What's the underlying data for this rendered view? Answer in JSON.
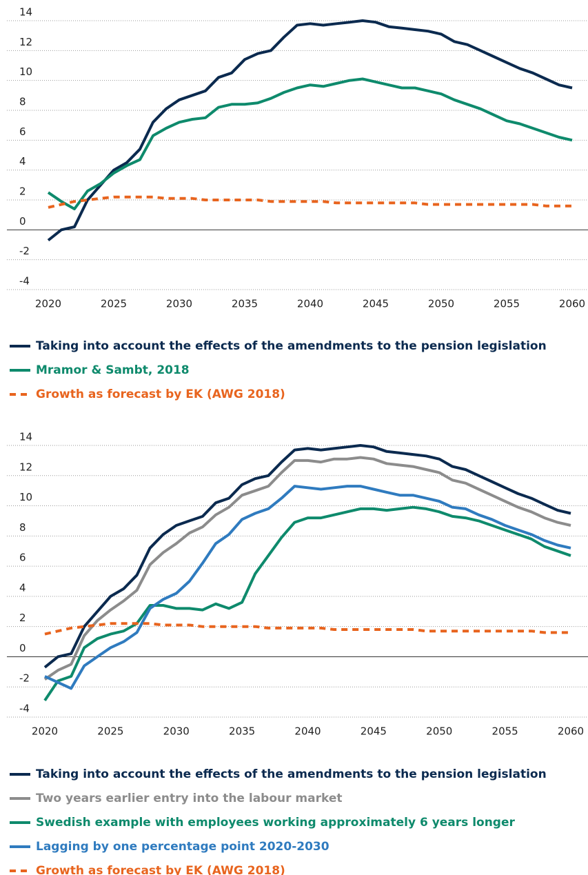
{
  "chart_data": [
    {
      "type": "line",
      "x": [
        2020,
        2021,
        2022,
        2023,
        2024,
        2025,
        2026,
        2027,
        2028,
        2029,
        2030,
        2031,
        2032,
        2033,
        2034,
        2035,
        2036,
        2037,
        2038,
        2039,
        2040,
        2041,
        2042,
        2043,
        2044,
        2045,
        2046,
        2047,
        2048,
        2049,
        2050,
        2051,
        2052,
        2053,
        2054,
        2055,
        2056,
        2057,
        2058,
        2059,
        2060
      ],
      "xlim": [
        2020,
        2060
      ],
      "xticks": [
        2020,
        2025,
        2030,
        2035,
        2040,
        2045,
        2050,
        2055,
        2060
      ],
      "ylim": [
        -4,
        14
      ],
      "yticks": [
        -4,
        -2,
        0,
        2,
        4,
        6,
        8,
        10,
        12,
        14
      ],
      "grid": true,
      "series": [
        {
          "name": "Taking into account the effects of the amendments to the pension legislation",
          "color": "#0b2a4f",
          "values": [
            -0.7,
            0,
            0.2,
            2.0,
            3.0,
            4.0,
            4.5,
            5.4,
            7.2,
            8.1,
            8.7,
            9.0,
            9.3,
            10.2,
            10.5,
            11.4,
            11.8,
            12.0,
            12.9,
            13.7,
            13.8,
            13.7,
            13.8,
            13.9,
            14.0,
            13.9,
            13.6,
            13.5,
            13.4,
            13.3,
            13.1,
            12.6,
            12.4,
            12.0,
            11.6,
            11.2,
            10.8,
            10.5,
            10.1,
            9.7,
            9.5
          ]
        },
        {
          "name": "Mramor & Sambt, 2018",
          "color": "#0e8a6c",
          "values": [
            2.5,
            1.9,
            1.4,
            2.6,
            3.1,
            3.8,
            4.3,
            4.7,
            6.3,
            6.8,
            7.2,
            7.4,
            7.5,
            8.2,
            8.4,
            8.4,
            8.5,
            8.8,
            9.2,
            9.5,
            9.7,
            9.6,
            9.8,
            10.0,
            10.1,
            9.9,
            9.7,
            9.5,
            9.5,
            9.3,
            9.1,
            8.7,
            8.4,
            8.1,
            7.7,
            7.3,
            7.1,
            6.8,
            6.5,
            6.2,
            6.0
          ]
        },
        {
          "name": "Growth as forecast by EK (AWG 2018)",
          "color": "#e8641e",
          "dashed": true,
          "values": [
            1.5,
            1.7,
            1.9,
            2.0,
            2.1,
            2.2,
            2.2,
            2.2,
            2.2,
            2.1,
            2.1,
            2.1,
            2.0,
            2.0,
            2.0,
            2.0,
            2.0,
            1.9,
            1.9,
            1.9,
            1.9,
            1.9,
            1.8,
            1.8,
            1.8,
            1.8,
            1.8,
            1.8,
            1.8,
            1.7,
            1.7,
            1.7,
            1.7,
            1.7,
            1.7,
            1.7,
            1.7,
            1.7,
            1.6,
            1.6,
            1.6
          ]
        }
      ]
    },
    {
      "type": "line",
      "x": [
        2020,
        2021,
        2022,
        2023,
        2024,
        2025,
        2026,
        2027,
        2028,
        2029,
        2030,
        2031,
        2032,
        2033,
        2034,
        2035,
        2036,
        2037,
        2038,
        2039,
        2040,
        2041,
        2042,
        2043,
        2044,
        2045,
        2046,
        2047,
        2048,
        2049,
        2050,
        2051,
        2052,
        2053,
        2054,
        2055,
        2056,
        2057,
        2058,
        2059,
        2060
      ],
      "xlim": [
        2020,
        2060
      ],
      "xticks": [
        2020,
        2025,
        2030,
        2035,
        2040,
        2045,
        2050,
        2055,
        2060
      ],
      "ylim": [
        -4,
        14
      ],
      "yticks": [
        -4,
        -2,
        0,
        2,
        4,
        6,
        8,
        10,
        12,
        14
      ],
      "grid": true,
      "series": [
        {
          "name": "Taking into account the effects of the amendments to the pension legislation",
          "color": "#0b2a4f",
          "values": [
            -0.7,
            0,
            0.2,
            2.0,
            3.0,
            4.0,
            4.5,
            5.4,
            7.2,
            8.1,
            8.7,
            9.0,
            9.3,
            10.2,
            10.5,
            11.4,
            11.8,
            12.0,
            12.9,
            13.7,
            13.8,
            13.7,
            13.8,
            13.9,
            14.0,
            13.9,
            13.6,
            13.5,
            13.4,
            13.3,
            13.1,
            12.6,
            12.4,
            12.0,
            11.6,
            11.2,
            10.8,
            10.5,
            10.1,
            9.7,
            9.5
          ]
        },
        {
          "name": "Two years earlier entry into the labour market",
          "color": "#8c8c8c",
          "values": [
            -1.5,
            -0.9,
            -0.5,
            1.4,
            2.4,
            3.1,
            3.7,
            4.4,
            6.1,
            6.9,
            7.5,
            8.2,
            8.6,
            9.4,
            9.9,
            10.7,
            11.0,
            11.3,
            12.2,
            13.0,
            13.0,
            12.9,
            13.1,
            13.1,
            13.2,
            13.1,
            12.8,
            12.7,
            12.6,
            12.4,
            12.2,
            11.7,
            11.5,
            11.1,
            10.7,
            10.3,
            9.9,
            9.6,
            9.2,
            8.9,
            8.7
          ]
        },
        {
          "name": "Swedish example with employees working approximately 6 years longer",
          "color": "#0e8a6c",
          "values": [
            -2.9,
            -1.6,
            -1.3,
            0.6,
            1.2,
            1.5,
            1.7,
            2.2,
            3.4,
            3.4,
            3.2,
            3.2,
            3.1,
            3.5,
            3.2,
            3.6,
            5.5,
            6.7,
            7.9,
            8.9,
            9.2,
            9.2,
            9.4,
            9.6,
            9.8,
            9.8,
            9.7,
            9.8,
            9.9,
            9.8,
            9.6,
            9.3,
            9.2,
            9.0,
            8.7,
            8.4,
            8.1,
            7.8,
            7.3,
            7.0,
            6.7
          ]
        },
        {
          "name": "Lagging by one percentage point 2020-2030",
          "color": "#2f7bbf",
          "values": [
            -1.3,
            -1.7,
            -2.1,
            -0.6,
            0,
            0.6,
            1.0,
            1.6,
            3.2,
            3.8,
            4.2,
            5.0,
            6.2,
            7.5,
            8.1,
            9.1,
            9.5,
            9.8,
            10.5,
            11.3,
            11.2,
            11.1,
            11.2,
            11.3,
            11.3,
            11.1,
            10.9,
            10.7,
            10.7,
            10.5,
            10.3,
            9.9,
            9.8,
            9.4,
            9.1,
            8.7,
            8.4,
            8.1,
            7.7,
            7.4,
            7.2
          ]
        },
        {
          "name": "Growth as forecast by EK (AWG 2018)",
          "color": "#e8641e",
          "dashed": true,
          "values": [
            1.5,
            1.7,
            1.9,
            2.0,
            2.1,
            2.2,
            2.2,
            2.2,
            2.2,
            2.1,
            2.1,
            2.1,
            2.0,
            2.0,
            2.0,
            2.0,
            2.0,
            1.9,
            1.9,
            1.9,
            1.9,
            1.9,
            1.8,
            1.8,
            1.8,
            1.8,
            1.8,
            1.8,
            1.8,
            1.7,
            1.7,
            1.7,
            1.7,
            1.7,
            1.7,
            1.7,
            1.7,
            1.7,
            1.6,
            1.6,
            1.6
          ]
        }
      ]
    }
  ]
}
